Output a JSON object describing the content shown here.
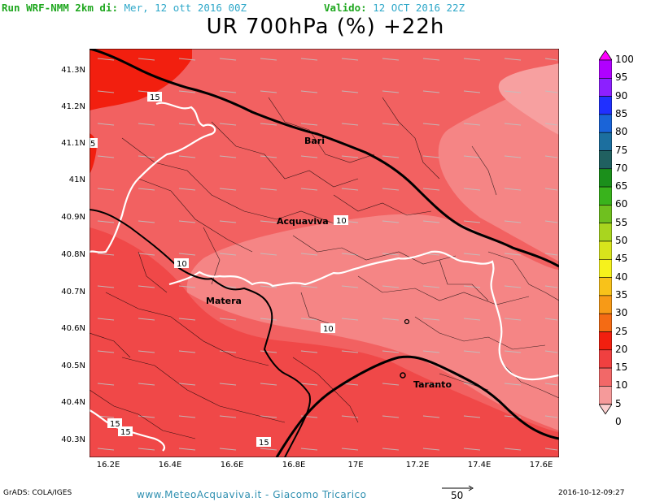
{
  "header": {
    "run_label": "Run WRF-NMM 2km di:",
    "run_date": "Mer, 12 ott 2016 00Z",
    "valid_label": "Valido:",
    "valid_date": "12 OCT 2016 22Z"
  },
  "title": "UR 700hPa (%) +22h",
  "y_axis_labels": [
    "41.3N",
    "41.2N",
    "41.1N",
    "41N",
    "40.9N",
    "40.8N",
    "40.7N",
    "40.6N",
    "40.5N",
    "40.4N",
    "40.3N"
  ],
  "x_axis_labels": [
    "16.2E",
    "16.4E",
    "16.6E",
    "16.8E",
    "17E",
    "17.2E",
    "17.4E",
    "17.6E"
  ],
  "cities": [
    "Bari",
    "Acquaviva",
    "Matera",
    "Taranto"
  ],
  "contour_labels": [
    "15",
    "5",
    "10",
    "10",
    "10",
    "15",
    "15",
    "15"
  ],
  "colorbar": {
    "labels": [
      "100",
      "95",
      "90",
      "85",
      "80",
      "75",
      "70",
      "65",
      "60",
      "55",
      "50",
      "45",
      "40",
      "35",
      "30",
      "25",
      "20",
      "15",
      "10",
      "5",
      "0"
    ],
    "colors": [
      "#ff00ff",
      "#b000ff",
      "#8c20ff",
      "#2030ff",
      "#1a64d8",
      "#1c6f9f",
      "#206060",
      "#1b8f1b",
      "#39b31c",
      "#6fc01f",
      "#a9d51f",
      "#d8e41c",
      "#f6f21c",
      "#f8c21a",
      "#f79a17",
      "#f46b14",
      "#f21f0f",
      "#f04040",
      "#f26868",
      "#f59a9a",
      "#fbd0d0"
    ]
  },
  "footer": {
    "grads": "GrADS: COLA/IGES",
    "credit": "www.MeteoAcquaviva.it - Giacomo Tricarico",
    "scale": "50",
    "timestamp": "2016-10-12-09:27"
  }
}
